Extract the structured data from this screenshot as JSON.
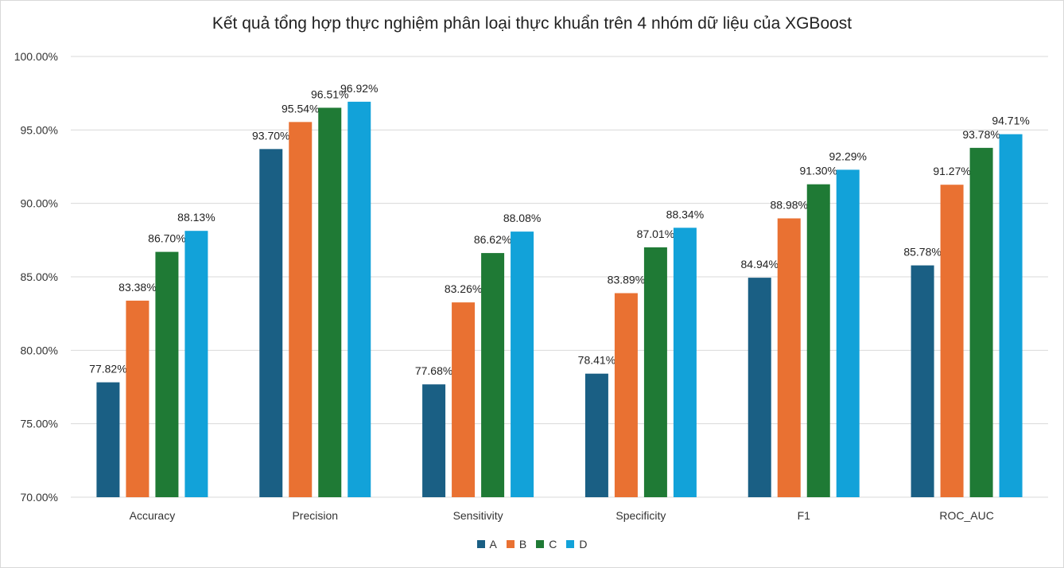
{
  "chart_data": {
    "type": "bar",
    "title": "Kết quả tổng hợp thực nghiệm phân loại thực khuẩn trên 4 nhóm dữ liệu của XGBoost",
    "categories": [
      "Accuracy",
      "Precision",
      "Sensitivity",
      "Specificity",
      "F1",
      "ROC_AUC"
    ],
    "series": [
      {
        "name": "A",
        "color": "#1a5f84",
        "values": [
          77.82,
          93.7,
          77.68,
          78.41,
          84.94,
          85.78
        ]
      },
      {
        "name": "B",
        "color": "#e97132",
        "values": [
          83.38,
          95.54,
          83.26,
          83.89,
          88.98,
          91.27
        ]
      },
      {
        "name": "C",
        "color": "#1f7a35",
        "values": [
          86.7,
          96.51,
          86.62,
          87.01,
          91.3,
          93.78
        ]
      },
      {
        "name": "D",
        "color": "#12a2d9",
        "values": [
          88.13,
          96.92,
          88.08,
          88.34,
          92.29,
          94.71
        ]
      }
    ],
    "ylim": [
      70,
      100
    ],
    "yticks": [
      "70.00%",
      "75.00%",
      "80.00%",
      "85.00%",
      "90.00%",
      "95.00%",
      "100.00%"
    ],
    "data_labels": [
      [
        "77.82%",
        "93.70%",
        "77.68%",
        "78.41%",
        "84.94%",
        "85.78%"
      ],
      [
        "83.38%",
        "95.54%",
        "83.26%",
        "83.89%",
        "88.98%",
        "91.27%"
      ],
      [
        "86.70%",
        "96.51%",
        "86.62%",
        "87.01%",
        "91.30%",
        "93.78%"
      ],
      [
        "88.13%",
        "96.92%",
        "88.08%",
        "88.34%",
        "92.29%",
        "94.71%"
      ]
    ],
    "grid": true,
    "legend_position": "bottom"
  }
}
